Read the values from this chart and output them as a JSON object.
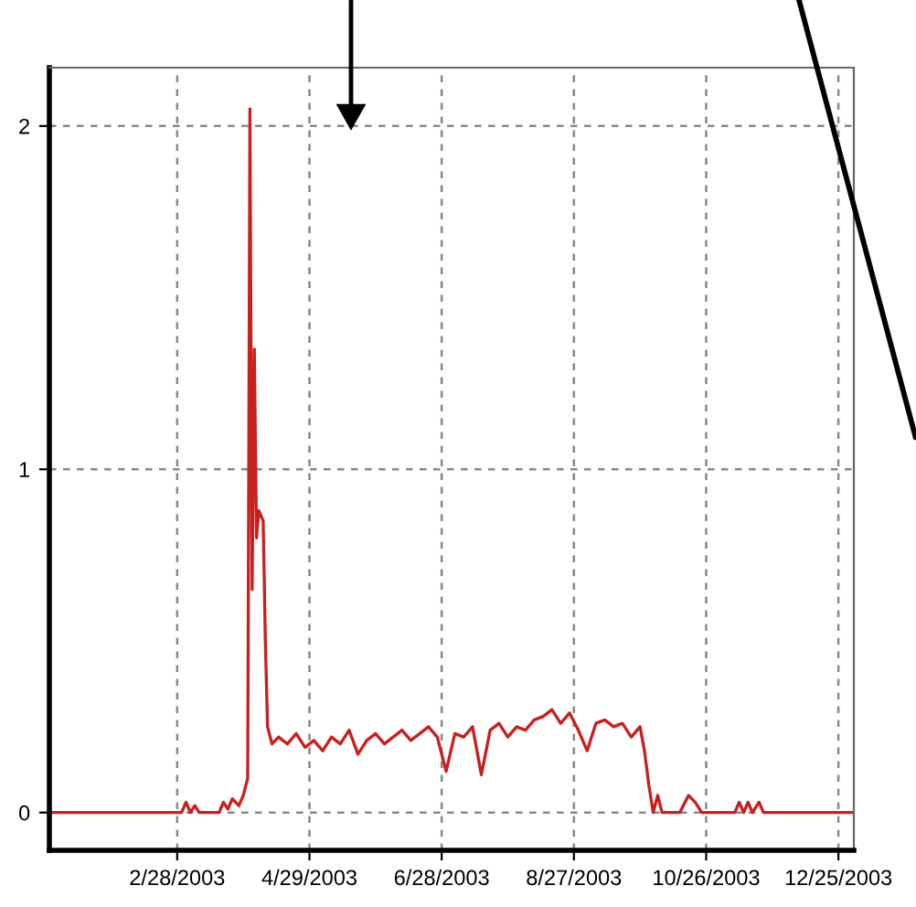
{
  "chart_data": {
    "type": "line",
    "color": "#c8201e",
    "line_style": "solid",
    "marker": "none",
    "grid": true,
    "legend": false,
    "x": [
      "2003-01-01",
      "2003-03-02",
      "2003-03-04",
      "2003-03-06",
      "2003-03-08",
      "2003-03-10",
      "2003-03-19",
      "2003-03-21",
      "2003-03-23",
      "2003-03-25",
      "2003-03-28",
      "2003-03-30",
      "2003-04-01",
      "2003-04-02",
      "2003-04-03",
      "2003-04-04",
      "2003-04-05",
      "2003-04-06",
      "2003-04-08",
      "2003-04-09",
      "2003-04-10",
      "2003-04-12",
      "2003-04-15",
      "2003-04-19",
      "2003-04-23",
      "2003-04-27",
      "2003-05-01",
      "2003-05-05",
      "2003-05-09",
      "2003-05-13",
      "2003-05-17",
      "2003-05-21",
      "2003-05-25",
      "2003-05-29",
      "2003-06-02",
      "2003-06-06",
      "2003-06-10",
      "2003-06-14",
      "2003-06-18",
      "2003-06-22",
      "2003-06-26",
      "2003-06-30",
      "2003-07-04",
      "2003-07-08",
      "2003-07-12",
      "2003-07-16",
      "2003-07-20",
      "2003-07-24",
      "2003-07-28",
      "2003-08-01",
      "2003-08-05",
      "2003-08-09",
      "2003-08-13",
      "2003-08-17",
      "2003-08-21",
      "2003-08-25",
      "2003-08-29",
      "2003-09-02",
      "2003-09-06",
      "2003-09-10",
      "2003-09-14",
      "2003-09-18",
      "2003-09-22",
      "2003-09-26",
      "2003-09-28",
      "2003-09-30",
      "2003-10-02",
      "2003-10-04",
      "2003-10-06",
      "2003-10-14",
      "2003-10-18",
      "2003-10-21",
      "2003-10-24",
      "2003-11-08",
      "2003-11-10",
      "2003-11-12",
      "2003-11-14",
      "2003-11-16",
      "2003-11-19",
      "2003-11-21",
      "2003-12-31"
    ],
    "values": [
      0,
      0,
      0.03,
      0,
      0.02,
      0,
      0,
      0.03,
      0.01,
      0.04,
      0.02,
      0.05,
      0.1,
      2.05,
      0.65,
      1.35,
      0.8,
      0.88,
      0.85,
      0.5,
      0.25,
      0.2,
      0.22,
      0.2,
      0.23,
      0.19,
      0.21,
      0.18,
      0.22,
      0.2,
      0.24,
      0.17,
      0.21,
      0.23,
      0.2,
      0.22,
      0.24,
      0.21,
      0.23,
      0.25,
      0.22,
      0.12,
      0.23,
      0.22,
      0.25,
      0.11,
      0.24,
      0.26,
      0.22,
      0.25,
      0.24,
      0.27,
      0.28,
      0.3,
      0.26,
      0.29,
      0.24,
      0.18,
      0.26,
      0.27,
      0.25,
      0.26,
      0.22,
      0.25,
      0.18,
      0.08,
      0,
      0.05,
      0,
      0,
      0.05,
      0.03,
      0,
      0,
      0.03,
      0,
      0.03,
      0,
      0.03,
      0,
      0
    ],
    "xlim": [
      "2003-01-01",
      "2004-01-01"
    ],
    "xticks": [
      {
        "value": "2003-02-28",
        "label": "2/28/2003"
      },
      {
        "value": "2003-04-29",
        "label": "4/29/2003"
      },
      {
        "value": "2003-06-28",
        "label": "6/28/2003"
      },
      {
        "value": "2003-08-27",
        "label": "8/27/2003"
      },
      {
        "value": "2003-10-26",
        "label": "10/26/2003"
      },
      {
        "value": "2003-12-25",
        "label": "12/25/2003"
      }
    ],
    "ylim": [
      -0.11,
      2.17
    ],
    "yticks": [
      0,
      1,
      2
    ]
  }
}
